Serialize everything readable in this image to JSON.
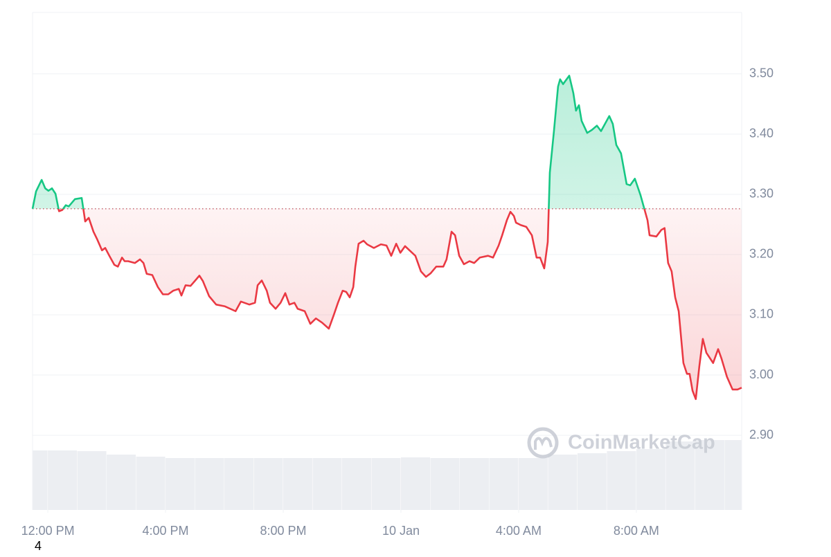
{
  "chart_data": {
    "type": "line",
    "colors": {
      "up": "#16c784",
      "down": "#ea3943",
      "volume": "#eceef2"
    },
    "grid": true,
    "reference_value": 3.276,
    "xlim": [
      -0.52,
      23.58
    ],
    "xticks": [
      {
        "value": 0,
        "label": "12:00 PM"
      },
      {
        "value": 4,
        "label": "4:00 PM"
      },
      {
        "value": 8,
        "label": "8:00 PM"
      },
      {
        "value": 12,
        "label": "10 Jan"
      },
      {
        "value": 16,
        "label": "4:00 AM"
      },
      {
        "value": 20,
        "label": "8:00 AM"
      }
    ],
    "ylim": [
      2.776,
      3.602
    ],
    "yticks": [
      {
        "value": 2.9,
        "label": "2.90"
      },
      {
        "value": 3.0,
        "label": "3.00"
      },
      {
        "value": 3.1,
        "label": "3.10"
      },
      {
        "value": 3.2,
        "label": "3.20"
      },
      {
        "value": 3.3,
        "label": "3.30"
      },
      {
        "value": 3.4,
        "label": "3.40"
      },
      {
        "value": 3.5,
        "label": "3.50"
      }
    ],
    "x": [
      -0.52,
      -0.4,
      -0.21,
      -0.09,
      0.02,
      0.14,
      0.26,
      0.38,
      0.49,
      0.61,
      0.71,
      0.92,
      1.15,
      1.27,
      1.39,
      1.55,
      1.67,
      1.84,
      1.95,
      2.09,
      2.26,
      2.38,
      2.52,
      2.61,
      2.73,
      2.96,
      3.13,
      3.25,
      3.36,
      3.55,
      3.74,
      3.91,
      4.09,
      4.26,
      4.45,
      4.54,
      4.68,
      4.85,
      5.01,
      5.15,
      5.27,
      5.48,
      5.72,
      6.02,
      6.38,
      6.56,
      6.85,
      7.04,
      7.13,
      7.27,
      7.44,
      7.55,
      7.74,
      7.91,
      8.07,
      8.21,
      8.38,
      8.49,
      8.73,
      8.92,
      9.11,
      9.32,
      9.55,
      9.72,
      9.86,
      10.02,
      10.14,
      10.26,
      10.38,
      10.45,
      10.56,
      10.73,
      10.85,
      11.08,
      11.32,
      11.51,
      11.67,
      11.84,
      11.98,
      12.14,
      12.38,
      12.49,
      12.68,
      12.85,
      13.01,
      13.2,
      13.44,
      13.55,
      13.72,
      13.84,
      13.98,
      14.14,
      14.33,
      14.49,
      14.68,
      14.96,
      15.13,
      15.32,
      15.44,
      15.6,
      15.72,
      15.84,
      15.91,
      16.07,
      16.26,
      16.45,
      16.61,
      16.73,
      16.87,
      16.99,
      17.06,
      17.2,
      17.34,
      17.41,
      17.51,
      17.72,
      17.86,
      17.95,
      18.05,
      18.14,
      18.33,
      18.49,
      18.66,
      18.8,
      19.08,
      19.2,
      19.32,
      19.48,
      19.67,
      19.79,
      19.95,
      20.14,
      20.26,
      20.38,
      20.45,
      20.68,
      20.85,
      20.96,
      21.08,
      21.2,
      21.32,
      21.44,
      21.6,
      21.72,
      21.81,
      21.91,
      22.02,
      22.14,
      22.26,
      22.38,
      22.61,
      22.78,
      22.89,
      23.08,
      23.27,
      23.44,
      23.58
    ],
    "values": [
      3.276,
      3.305,
      3.324,
      3.31,
      3.306,
      3.31,
      3.301,
      3.272,
      3.274,
      3.282,
      3.28,
      3.292,
      3.294,
      3.255,
      3.261,
      3.238,
      3.226,
      3.207,
      3.211,
      3.198,
      3.183,
      3.18,
      3.195,
      3.189,
      3.189,
      3.186,
      3.192,
      3.186,
      3.168,
      3.166,
      3.146,
      3.134,
      3.134,
      3.14,
      3.143,
      3.132,
      3.149,
      3.148,
      3.157,
      3.165,
      3.156,
      3.131,
      3.117,
      3.114,
      3.106,
      3.122,
      3.117,
      3.12,
      3.149,
      3.157,
      3.14,
      3.12,
      3.11,
      3.12,
      3.136,
      3.117,
      3.12,
      3.11,
      3.106,
      3.085,
      3.094,
      3.087,
      3.077,
      3.1,
      3.12,
      3.14,
      3.138,
      3.129,
      3.146,
      3.18,
      3.218,
      3.223,
      3.217,
      3.211,
      3.217,
      3.215,
      3.198,
      3.218,
      3.203,
      3.214,
      3.203,
      3.198,
      3.172,
      3.163,
      3.169,
      3.18,
      3.18,
      3.192,
      3.238,
      3.232,
      3.198,
      3.184,
      3.189,
      3.186,
      3.195,
      3.198,
      3.195,
      3.215,
      3.232,
      3.257,
      3.271,
      3.264,
      3.253,
      3.249,
      3.246,
      3.232,
      3.195,
      3.195,
      3.177,
      3.221,
      3.336,
      3.405,
      3.479,
      3.491,
      3.483,
      3.497,
      3.468,
      3.439,
      3.448,
      3.422,
      3.402,
      3.407,
      3.414,
      3.405,
      3.43,
      3.417,
      3.382,
      3.368,
      3.317,
      3.315,
      3.326,
      3.299,
      3.278,
      3.257,
      3.232,
      3.23,
      3.241,
      3.244,
      3.186,
      3.172,
      3.129,
      3.106,
      3.02,
      3.002,
      3.002,
      2.974,
      2.96,
      3.014,
      3.06,
      3.037,
      3.02,
      3.043,
      3.028,
      2.997,
      2.976,
      2.976,
      2.979
    ],
    "volume": {
      "lim": [
        0,
        110
      ],
      "x": [
        -0.52,
        0,
        1,
        2,
        3,
        4,
        5,
        6,
        7,
        8,
        9,
        10,
        11,
        12,
        13,
        14,
        15,
        16,
        17,
        18,
        19,
        20,
        21,
        22,
        23
      ],
      "values": [
        86,
        86,
        85,
        80,
        77,
        75,
        75,
        75,
        75,
        75,
        75,
        75,
        75,
        76,
        75,
        75,
        75,
        75,
        80,
        82,
        85,
        88,
        99,
        101,
        101
      ]
    },
    "watermark": "CoinMarketCap",
    "corner_text": "4"
  }
}
